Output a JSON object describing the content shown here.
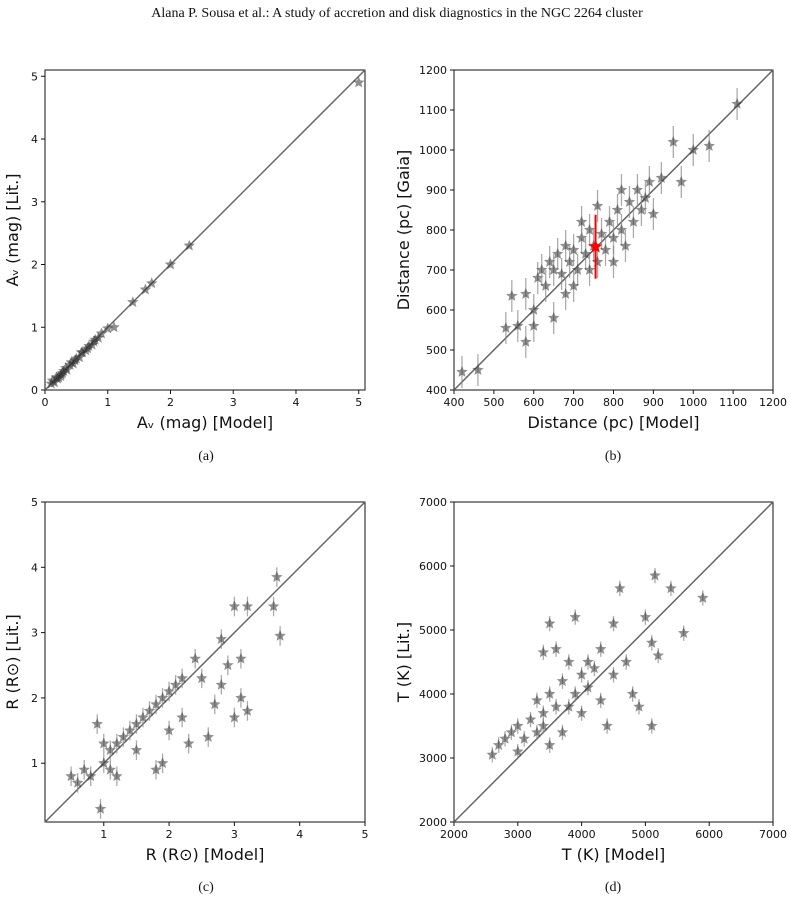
{
  "header": "Alana P. Sousa  et al.: A study of accretion and disk diagnostics in the NGC 2264 cluster",
  "panels": [
    "(a)",
    "(b)",
    "(c)",
    "(d)"
  ],
  "chart_data": [
    {
      "type": "scatter",
      "xlabel": "A_v (mag) [Model]",
      "ylabel": "A_v (mag) [Lit.]",
      "xlim": [
        0,
        5.1
      ],
      "ylim": [
        0,
        5.1
      ],
      "xticks": [
        "0",
        "1",
        "2",
        "3",
        "4",
        "5"
      ],
      "yticks": [
        "0",
        "1",
        "2",
        "3",
        "4",
        "5"
      ],
      "identity_line": true,
      "points": [
        [
          0.1,
          0.1
        ],
        [
          0.15,
          0.12
        ],
        [
          0.2,
          0.18
        ],
        [
          0.25,
          0.22
        ],
        [
          0.3,
          0.3
        ],
        [
          0.35,
          0.32
        ],
        [
          0.4,
          0.4
        ],
        [
          0.45,
          0.42
        ],
        [
          0.5,
          0.5
        ],
        [
          0.55,
          0.52
        ],
        [
          0.6,
          0.6
        ],
        [
          0.65,
          0.63
        ],
        [
          0.7,
          0.7
        ],
        [
          0.75,
          0.72
        ],
        [
          0.8,
          0.8
        ],
        [
          0.85,
          0.83
        ],
        [
          0.9,
          0.9
        ],
        [
          1.0,
          0.98
        ],
        [
          1.1,
          1.0
        ],
        [
          1.4,
          1.4
        ],
        [
          1.6,
          1.6
        ],
        [
          1.7,
          1.7
        ],
        [
          2.0,
          2.0
        ],
        [
          2.3,
          2.3
        ],
        [
          5.0,
          4.9
        ],
        [
          0.12,
          0.15
        ],
        [
          0.22,
          0.2
        ],
        [
          0.28,
          0.27
        ],
        [
          0.33,
          0.35
        ],
        [
          0.42,
          0.44
        ],
        [
          0.48,
          0.47
        ],
        [
          0.58,
          0.6
        ],
        [
          0.68,
          0.66
        ],
        [
          0.78,
          0.77
        ],
        [
          0.18,
          0.2
        ],
        [
          0.26,
          0.25
        ]
      ]
    },
    {
      "type": "scatter",
      "xlabel": "Distance (pc) [Model]",
      "ylabel": "Distance (pc) [Gaia]",
      "xlim": [
        400,
        1200
      ],
      "ylim": [
        400,
        1200
      ],
      "xticks": [
        "400",
        "500",
        "600",
        "700",
        "800",
        "900",
        "1000",
        "1100",
        "1200"
      ],
      "yticks": [
        "400",
        "500",
        "600",
        "700",
        "800",
        "900",
        "1000",
        "1100",
        "1200"
      ],
      "identity_line": true,
      "highlight": {
        "x": 755,
        "y": 758,
        "err": 80,
        "color": "#ff0000"
      },
      "points": [
        [
          420,
          445
        ],
        [
          460,
          450
        ],
        [
          530,
          555
        ],
        [
          545,
          635
        ],
        [
          560,
          560
        ],
        [
          580,
          640
        ],
        [
          600,
          600
        ],
        [
          610,
          680
        ],
        [
          620,
          700
        ],
        [
          630,
          660
        ],
        [
          640,
          720
        ],
        [
          650,
          700
        ],
        [
          660,
          740
        ],
        [
          670,
          690
        ],
        [
          680,
          760
        ],
        [
          690,
          720
        ],
        [
          700,
          750
        ],
        [
          710,
          700
        ],
        [
          720,
          780
        ],
        [
          730,
          740
        ],
        [
          740,
          800
        ],
        [
          750,
          760
        ],
        [
          760,
          720
        ],
        [
          770,
          790
        ],
        [
          780,
          750
        ],
        [
          790,
          820
        ],
        [
          800,
          780
        ],
        [
          810,
          850
        ],
        [
          820,
          800
        ],
        [
          830,
          760
        ],
        [
          840,
          870
        ],
        [
          850,
          820
        ],
        [
          860,
          900
        ],
        [
          870,
          850
        ],
        [
          880,
          880
        ],
        [
          890,
          920
        ],
        [
          900,
          840
        ],
        [
          920,
          930
        ],
        [
          950,
          1020
        ],
        [
          970,
          920
        ],
        [
          1000,
          1000
        ],
        [
          1040,
          1010
        ],
        [
          1110,
          1115
        ],
        [
          650,
          580
        ],
        [
          700,
          660
        ],
        [
          720,
          820
        ],
        [
          760,
          860
        ],
        [
          680,
          640
        ],
        [
          740,
          700
        ],
        [
          800,
          720
        ],
        [
          820,
          900
        ],
        [
          600,
          560
        ],
        [
          580,
          520
        ]
      ]
    },
    {
      "type": "scatter",
      "xlabel": "R (R_⊙) [Model]",
      "ylabel": "R (R_⊙) [Lit.]",
      "xlim": [
        0.1,
        5
      ],
      "ylim": [
        0.1,
        5
      ],
      "xticks": [
        "1",
        "2",
        "3",
        "4",
        "5"
      ],
      "yticks": [
        "1",
        "2",
        "3",
        "4",
        "5"
      ],
      "identity_line": true,
      "points": [
        [
          0.5,
          0.8
        ],
        [
          0.6,
          0.7
        ],
        [
          0.7,
          0.9
        ],
        [
          0.8,
          0.8
        ],
        [
          0.9,
          1.6
        ],
        [
          0.95,
          0.3
        ],
        [
          1.0,
          1.0
        ],
        [
          1.1,
          1.2
        ],
        [
          1.2,
          1.3
        ],
        [
          1.3,
          1.4
        ],
        [
          1.4,
          1.5
        ],
        [
          1.5,
          1.6
        ],
        [
          1.6,
          1.7
        ],
        [
          1.7,
          1.8
        ],
        [
          1.8,
          1.9
        ],
        [
          1.9,
          2.0
        ],
        [
          2.0,
          2.1
        ],
        [
          2.1,
          2.2
        ],
        [
          2.2,
          1.7
        ],
        [
          2.3,
          1.3
        ],
        [
          2.4,
          2.6
        ],
        [
          2.5,
          2.3
        ],
        [
          2.6,
          1.4
        ],
        [
          2.7,
          1.9
        ],
        [
          2.8,
          2.9
        ],
        [
          2.9,
          2.5
        ],
        [
          3.0,
          1.7
        ],
        [
          3.0,
          3.4
        ],
        [
          3.1,
          2.0
        ],
        [
          3.2,
          3.4
        ],
        [
          3.2,
          1.8
        ],
        [
          3.6,
          3.4
        ],
        [
          3.65,
          3.85
        ],
        [
          3.7,
          2.95
        ],
        [
          1.8,
          0.9
        ],
        [
          1.9,
          1.0
        ],
        [
          1.2,
          0.8
        ],
        [
          1.5,
          1.2
        ],
        [
          2.0,
          1.5
        ],
        [
          2.2,
          2.3
        ],
        [
          1.0,
          1.3
        ],
        [
          1.1,
          0.9
        ],
        [
          2.8,
          2.2
        ],
        [
          3.1,
          2.6
        ]
      ]
    },
    {
      "type": "scatter",
      "xlabel": "T (K) [Model]",
      "ylabel": "T (K) [Lit.]",
      "xlim": [
        2000,
        7000
      ],
      "ylim": [
        2000,
        7000
      ],
      "xticks": [
        "2000",
        "3000",
        "4000",
        "5000",
        "6000",
        "7000"
      ],
      "yticks": [
        "2000",
        "3000",
        "4000",
        "5000",
        "6000",
        "7000"
      ],
      "identity_line": true,
      "points": [
        [
          2600,
          3050
        ],
        [
          2700,
          3200
        ],
        [
          2800,
          3300
        ],
        [
          2900,
          3400
        ],
        [
          3000,
          3100
        ],
        [
          3000,
          3500
        ],
        [
          3100,
          3300
        ],
        [
          3200,
          3600
        ],
        [
          3300,
          3400
        ],
        [
          3300,
          3900
        ],
        [
          3400,
          3500
        ],
        [
          3400,
          3700
        ],
        [
          3500,
          4000
        ],
        [
          3500,
          3200
        ],
        [
          3600,
          4700
        ],
        [
          3600,
          3800
        ],
        [
          3700,
          3400
        ],
        [
          3700,
          4200
        ],
        [
          3800,
          3800
        ],
        [
          3800,
          4500
        ],
        [
          3900,
          4000
        ],
        [
          3900,
          5200
        ],
        [
          4000,
          4300
        ],
        [
          4000,
          3700
        ],
        [
          4100,
          4500
        ],
        [
          4100,
          4100
        ],
        [
          4200,
          4400
        ],
        [
          4300,
          3900
        ],
        [
          4300,
          4700
        ],
        [
          4400,
          3500
        ],
        [
          4500,
          5100
        ],
        [
          4500,
          4300
        ],
        [
          4600,
          5650
        ],
        [
          4700,
          4500
        ],
        [
          4800,
          4000
        ],
        [
          4900,
          3800
        ],
        [
          5000,
          5200
        ],
        [
          5100,
          4800
        ],
        [
          5100,
          3500
        ],
        [
          5150,
          5850
        ],
        [
          5200,
          4600
        ],
        [
          5400,
          5650
        ],
        [
          5600,
          4950
        ],
        [
          5900,
          5500
        ],
        [
          3500,
          5100
        ],
        [
          3400,
          4650
        ]
      ]
    }
  ]
}
